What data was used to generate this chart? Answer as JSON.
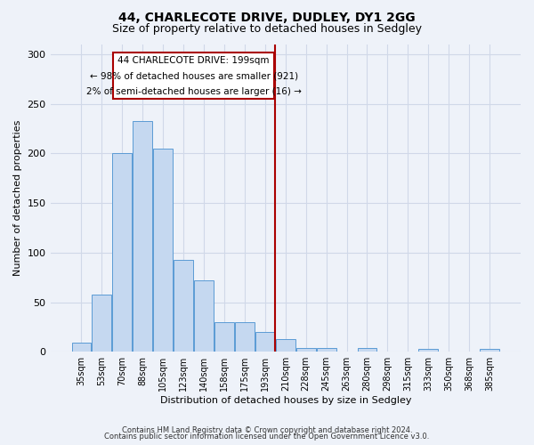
{
  "title": "44, CHARLECOTE DRIVE, DUDLEY, DY1 2GG",
  "subtitle": "Size of property relative to detached houses in Sedgley",
  "xlabel": "Distribution of detached houses by size in Sedgley",
  "ylabel": "Number of detached properties",
  "footer_line1": "Contains HM Land Registry data © Crown copyright and database right 2024.",
  "footer_line2": "Contains public sector information licensed under the Open Government Licence v3.0.",
  "bar_labels": [
    "35sqm",
    "53sqm",
    "70sqm",
    "88sqm",
    "105sqm",
    "123sqm",
    "140sqm",
    "158sqm",
    "175sqm",
    "193sqm",
    "210sqm",
    "228sqm",
    "245sqm",
    "263sqm",
    "280sqm",
    "298sqm",
    "315sqm",
    "333sqm",
    "350sqm",
    "368sqm",
    "385sqm"
  ],
  "bar_values": [
    9,
    58,
    200,
    233,
    205,
    93,
    72,
    30,
    30,
    20,
    13,
    4,
    4,
    0,
    4,
    0,
    0,
    3,
    0,
    0,
    3
  ],
  "bar_color": "#c5d8f0",
  "bar_edge_color": "#5b9bd5",
  "grid_color": "#d0d8e8",
  "vline_color": "#aa0000",
  "annotation_box_edgecolor": "#aa0000",
  "annotation_line1": "44 CHARLECOTE DRIVE: 199sqm",
  "annotation_line2": "← 98% of detached houses are smaller (921)",
  "annotation_line3": "2% of semi-detached houses are larger (16) →",
  "ylim_max": 310,
  "yticks": [
    0,
    50,
    100,
    150,
    200,
    250,
    300
  ],
  "bg_color": "#eef2f9",
  "title_fontsize": 10,
  "subtitle_fontsize": 9,
  "tick_label_fontsize": 7,
  "ylabel_fontsize": 8,
  "xlabel_fontsize": 8,
  "footer_fontsize": 6,
  "vline_bar_index": 9
}
